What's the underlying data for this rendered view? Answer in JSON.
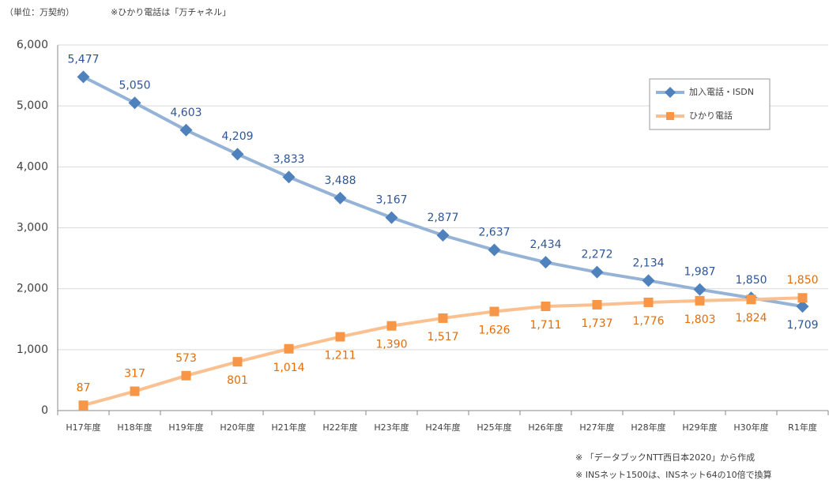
{
  "chart_data": {
    "type": "line",
    "subtitle": "（単位：万契約）",
    "note_top": "※ひかり電話は「万チャネル」",
    "notes": [
      "※ 「データブックNTT西日本2020」から作成",
      "※ INSネット1500は、INSネット64の10倍で換算"
    ],
    "categories": [
      "H17年度",
      "H18年度",
      "H19年度",
      "H20年度",
      "H21年度",
      "H22年度",
      "H23年度",
      "H24年度",
      "H25年度",
      "H26年度",
      "H27年度",
      "H28年度",
      "H29年度",
      "H30年度",
      "R1年度"
    ],
    "series": [
      {
        "name": "加入電話・ISDN",
        "color": "#4f81bd",
        "line_color": "#95b3d7",
        "label_color": "#2e5597",
        "values": [
          5477,
          5050,
          4603,
          4209,
          3833,
          3488,
          3167,
          2877,
          2637,
          2434,
          2272,
          2134,
          1987,
          1850,
          1709
        ],
        "value_labels": [
          "5,477",
          "5,050",
          "4,603",
          "4,209",
          "3,833",
          "3,488",
          "3,167",
          "2,877",
          "2,637",
          "2,434",
          "2,272",
          "2,134",
          "1,987",
          "1,850",
          "1,709"
        ]
      },
      {
        "name": "ひかり電話",
        "color": "#f79646",
        "line_color": "#fac090",
        "label_color": "#e46c0a",
        "values": [
          87,
          317,
          573,
          801,
          1014,
          1211,
          1390,
          1517,
          1626,
          1711,
          1737,
          1776,
          1803,
          1824,
          1850
        ],
        "value_labels": [
          "87",
          "317",
          "573",
          "801",
          "1,014",
          "1,211",
          "1,390",
          "1,517",
          "1,626",
          "1,711",
          "1,737",
          "1,776",
          "1,803",
          "1,824",
          "1,850"
        ]
      }
    ],
    "ylim": [
      0,
      6000
    ],
    "yticks": [
      0,
      {
        "value": 1000,
        "label": "1,000"
      },
      {
        "value": 2000,
        "label": "2,000"
      },
      {
        "value": 3000,
        "label": "3,000"
      },
      {
        "value": 4000,
        "label": "4,000"
      },
      {
        "value": 5000,
        "label": "5,000"
      },
      {
        "value": 6000,
        "label": "6,000"
      }
    ],
    "grid": true
  }
}
